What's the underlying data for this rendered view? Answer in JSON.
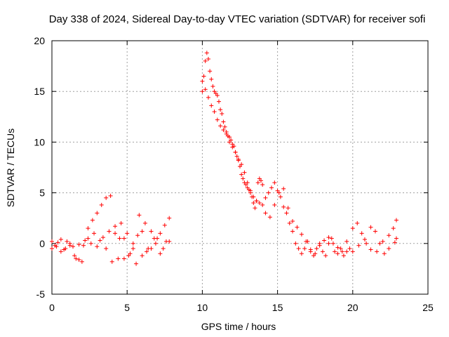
{
  "chart_data": {
    "type": "scatter",
    "title": "Day 338 of 2024, Sidereal Day-to-day VTEC variation (SDTVAR) for receiver sofi",
    "xlabel": "GPS time / hours",
    "ylabel": "SDTVAR / TECUs",
    "xlim": [
      0,
      25
    ],
    "ylim": [
      -5,
      20
    ],
    "xticks": [
      0,
      5,
      10,
      15,
      20,
      25
    ],
    "yticks": [
      -5,
      0,
      5,
      10,
      15,
      20
    ],
    "grid": true,
    "marker": "+",
    "color": "#ff0000",
    "series": [
      {
        "name": "SDTVAR",
        "x": [
          0.0,
          0.3,
          0.6,
          0.9,
          1.2,
          1.5,
          1.8,
          2.1,
          2.4,
          2.7,
          3.0,
          3.3,
          3.6,
          3.9,
          4.2,
          4.5,
          4.8,
          5.1,
          5.4,
          5.7,
          6.0,
          6.3,
          6.6,
          6.9,
          7.2,
          7.5,
          7.8,
          0.0,
          0.4,
          0.8,
          1.2,
          1.6,
          2.0,
          2.4,
          2.8,
          3.2,
          3.6,
          4.0,
          4.4,
          4.8,
          5.2,
          5.6,
          6.0,
          6.4,
          6.8,
          7.2,
          7.6,
          0.2,
          0.6,
          1.0,
          1.4,
          1.8,
          2.2,
          2.6,
          3.0,
          3.4,
          3.8,
          4.2,
          4.6,
          5.0,
          5.4,
          5.8,
          6.2,
          6.6,
          7.0,
          7.4,
          7.8,
          10.0,
          10.1,
          10.2,
          10.3,
          10.4,
          10.5,
          10.6,
          10.7,
          10.8,
          10.9,
          11.0,
          11.1,
          11.2,
          11.3,
          11.4,
          11.5,
          11.6,
          11.7,
          11.8,
          11.9,
          12.0,
          12.1,
          12.2,
          12.3,
          12.4,
          12.5,
          12.6,
          12.7,
          12.8,
          12.9,
          13.0,
          13.1,
          13.2,
          13.3,
          13.4,
          13.5,
          13.6,
          13.7,
          13.8,
          13.9,
          14.0,
          10.0,
          10.2,
          10.4,
          10.6,
          10.8,
          11.0,
          11.2,
          11.4,
          11.6,
          11.8,
          12.0,
          12.2,
          12.4,
          12.6,
          12.8,
          13.0,
          13.2,
          13.4,
          13.6,
          13.8,
          14.0,
          14.2,
          14.4,
          14.6,
          14.8,
          15.0,
          15.2,
          15.4,
          15.6,
          15.8,
          16.0,
          16.2,
          16.4,
          16.6,
          16.8,
          17.0,
          17.2,
          17.4,
          17.6,
          17.8,
          18.0,
          18.2,
          18.4,
          18.6,
          18.8,
          19.0,
          19.2,
          19.4,
          19.6,
          19.8,
          14.2,
          14.5,
          14.8,
          15.1,
          15.4,
          15.7,
          16.0,
          16.3,
          16.6,
          16.9,
          17.2,
          17.5,
          17.8,
          18.1,
          18.4,
          18.7,
          19.0,
          19.3,
          19.6,
          20.0,
          20.3,
          20.6,
          20.9,
          21.2,
          21.5,
          21.8,
          22.1,
          22.4,
          22.7,
          22.9,
          20.0,
          20.4,
          20.8,
          21.2,
          21.6,
          22.0,
          22.4,
          22.8,
          22.9
        ],
        "y": [
          0.2,
          -0.3,
          0.4,
          -0.5,
          0.0,
          -1.2,
          -1.6,
          -0.2,
          1.5,
          2.3,
          3.0,
          3.8,
          4.5,
          4.7,
          1.0,
          0.5,
          -1.5,
          -1.2,
          -0.5,
          0.8,
          1.2,
          -0.8,
          -0.5,
          0.0,
          1.0,
          1.8,
          2.5,
          -0.5,
          0.1,
          -0.6,
          -0.2,
          -1.5,
          -1.8,
          0.5,
          1.0,
          0.3,
          -0.5,
          -1.8,
          -1.5,
          0.5,
          -1.0,
          -2.0,
          -1.2,
          -0.5,
          0.5,
          -1.0,
          0.2,
          -0.2,
          -0.8,
          0.2,
          -0.3,
          -0.1,
          0.3,
          0.0,
          -0.3,
          0.6,
          1.2,
          1.7,
          2.0,
          1.0,
          0.0,
          2.8,
          2.0,
          1.2,
          0.5,
          -0.5,
          0.2,
          15.0,
          16.5,
          18.0,
          18.8,
          18.2,
          17.0,
          16.2,
          15.5,
          15.0,
          14.8,
          14.6,
          14.0,
          13.2,
          12.8,
          12.0,
          11.5,
          11.0,
          10.6,
          10.5,
          10.2,
          9.8,
          9.6,
          9.0,
          8.6,
          8.2,
          7.6,
          6.8,
          6.4,
          6.0,
          5.8,
          5.5,
          5.3,
          5.0,
          4.6,
          4.0,
          3.5,
          4.2,
          6.0,
          6.4,
          6.2,
          5.8,
          16.0,
          15.2,
          14.4,
          13.6,
          13.0,
          12.2,
          11.6,
          11.2,
          10.8,
          10.0,
          9.5,
          9.0,
          8.3,
          7.8,
          7.0,
          6.0,
          5.2,
          4.6,
          4.2,
          4.0,
          3.8,
          4.5,
          5.0,
          5.5,
          6.0,
          5.2,
          4.6,
          3.6,
          3.0,
          2.0,
          1.2,
          0.0,
          -0.5,
          -1.0,
          -0.5,
          0.2,
          -0.8,
          -1.2,
          -0.5,
          0.0,
          -0.8,
          -1.2,
          0.0,
          0.5,
          -0.8,
          -1.0,
          -0.5,
          -1.2,
          -0.8,
          -0.5,
          3.0,
          2.6,
          3.8,
          5.0,
          5.4,
          3.5,
          2.2,
          1.6,
          0.9,
          0.2,
          -0.6,
          -1.0,
          -0.2,
          0.3,
          0.6,
          0.0,
          -0.4,
          -0.8,
          0.2,
          1.5,
          2.0,
          1.0,
          0.0,
          1.6,
          1.2,
          0.0,
          -1.0,
          0.8,
          1.5,
          0.5,
          -0.8,
          -0.2,
          0.4,
          -0.6,
          -0.8,
          0.2,
          -0.5,
          0.1,
          2.3
        ]
      }
    ]
  }
}
